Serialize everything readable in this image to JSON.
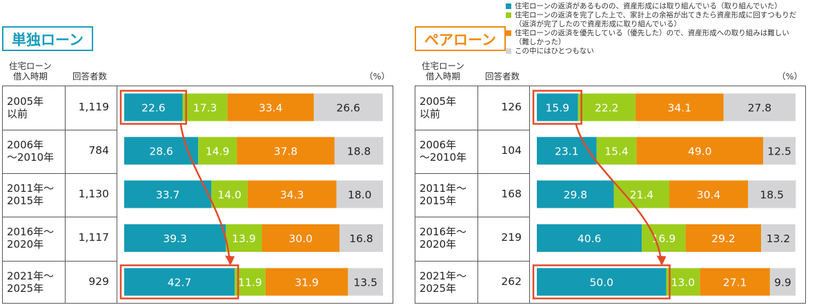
{
  "legend": [
    {
      "color": "#159ab3",
      "text": "住宅ローンの返済があるものの、資産形成には取り組んでいる（取り組んでいた）"
    },
    {
      "color": "#9ccd1d",
      "text": "住宅ローンの返済を完了した上で、家計上の余裕が出てきたら資産形成に回すつもりだ\n（返済が完了したので資産形成に取り組んでいる）"
    },
    {
      "color": "#f08a0d",
      "text": "住宅ローンの返済を優先している（優先した）ので、資産形成への取り組みは難しい\n（難しかった）"
    },
    {
      "color": "#d4d4d6",
      "text": "この中にはひとつもない"
    }
  ],
  "headers": {
    "period": "住宅ローン\n借入時期",
    "count": "回答者数",
    "unit": "（%）"
  },
  "chart_data": [
    {
      "type": "bar",
      "title": "単独ローン",
      "title_color": "#1a9dbd",
      "categories": [
        "2005年\n以前",
        "2006年\n～2010年",
        "2011年～\n2015年",
        "2016年～\n2020年",
        "2021年～\n2025年"
      ],
      "respondents": [
        "1,119",
        "784",
        "1,130",
        "1,117",
        "929"
      ],
      "series": [
        {
          "color": "#159ab3",
          "values": [
            22.6,
            28.6,
            33.7,
            39.3,
            42.7
          ],
          "labels": [
            "22.6",
            "28.6",
            "33.7",
            "39.3",
            "42.7"
          ]
        },
        {
          "color": "#9ccd1d",
          "values": [
            17.3,
            14.9,
            14.0,
            13.9,
            11.9
          ],
          "labels": [
            "17.3",
            "14.9",
            "14.0",
            "13.9",
            "11.9"
          ]
        },
        {
          "color": "#f08a0d",
          "values": [
            33.4,
            37.8,
            34.3,
            30.0,
            31.9
          ],
          "labels": [
            "33.4",
            "37.8",
            "34.3",
            "30.0",
            "31.9"
          ]
        },
        {
          "color": "#d4d4d6",
          "values": [
            26.6,
            18.8,
            18.0,
            16.8,
            13.5
          ],
          "labels": [
            "26.6",
            "18.8",
            "18.0",
            "16.8",
            "13.5"
          ]
        }
      ],
      "stacked": true,
      "orientation": "horizontal",
      "xlim": [
        0,
        100
      ],
      "highlight_color": "#e14a2a",
      "highlight_rows": [
        0,
        4
      ]
    },
    {
      "type": "bar",
      "title": "ペアローン",
      "title_color": "#f08a0d",
      "categories": [
        "2005年\n以前",
        "2006年\n～2010年",
        "2011年～\n2015年",
        "2016年～\n2020年",
        "2021年～\n2025年"
      ],
      "respondents": [
        "126",
        "104",
        "168",
        "219",
        "262"
      ],
      "series": [
        {
          "color": "#159ab3",
          "values": [
            15.9,
            23.1,
            29.8,
            40.6,
            50.0
          ],
          "labels": [
            "15.9",
            "23.1",
            "29.8",
            "40.6",
            "50.0"
          ]
        },
        {
          "color": "#9ccd1d",
          "values": [
            22.2,
            15.4,
            21.4,
            16.9,
            13.0
          ],
          "labels": [
            "22.2",
            "15.4",
            "21.4",
            "16.9",
            "13.0"
          ]
        },
        {
          "color": "#f08a0d",
          "values": [
            34.1,
            49.0,
            30.4,
            29.2,
            27.1
          ],
          "labels": [
            "34.1",
            "49.0",
            "30.4",
            "29.2",
            "27.1"
          ]
        },
        {
          "color": "#d4d4d6",
          "values": [
            27.8,
            12.5,
            18.5,
            13.2,
            9.9
          ],
          "labels": [
            "27.8",
            "12.5",
            "18.5",
            "13.2",
            "9.9"
          ]
        }
      ],
      "stacked": true,
      "orientation": "horizontal",
      "xlim": [
        0,
        100
      ],
      "highlight_color": "#e14a2a",
      "highlight_rows": [
        0,
        4
      ]
    }
  ]
}
